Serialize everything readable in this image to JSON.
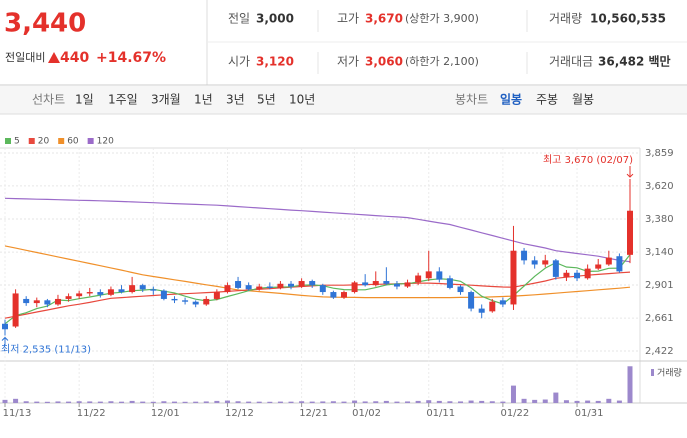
{
  "header": {
    "price": "3,440",
    "change_label": "전일대비",
    "change": "440",
    "change_rate": "+14.67%",
    "items": [
      {
        "label": "전일",
        "value": "3,000"
      },
      {
        "label": "고가",
        "value": "3,670",
        "note": "(상한가 3,900)"
      },
      {
        "label": "거래량",
        "value": "10,560,535"
      },
      {
        "label": "시가",
        "value": "3,120"
      },
      {
        "label": "저가",
        "value": "3,060",
        "note": "(하한가 2,100)"
      },
      {
        "label": "거래대금",
        "value": "36,482 백만"
      }
    ]
  },
  "nav": {
    "line_chart": "선차트",
    "periods": [
      "1일",
      "1주일",
      "3개월",
      "1년",
      "3년",
      "5년",
      "10년"
    ],
    "candle_chart": "봉차트",
    "candle_periods": [
      "일봉",
      "주봉",
      "월봉"
    ],
    "active": "일봉"
  },
  "chart_data": {
    "type": "candlestick",
    "categories": [
      "11/13",
      null,
      null,
      null,
      null,
      null,
      null,
      "11/22",
      null,
      null,
      null,
      null,
      null,
      null,
      "12/01",
      null,
      null,
      null,
      null,
      null,
      null,
      "12/12",
      null,
      null,
      null,
      null,
      null,
      null,
      "12/21",
      null,
      null,
      null,
      null,
      "01/02",
      null,
      null,
      null,
      null,
      null,
      null,
      "01/11",
      null,
      null,
      null,
      null,
      null,
      null,
      "01/22",
      null,
      null,
      null,
      null,
      null,
      null,
      "01/31",
      null,
      null,
      null,
      null,
      null
    ],
    "open": [
      2620,
      2600,
      2800,
      2770,
      2790,
      2760,
      2800,
      2820,
      2840,
      2850,
      2830,
      2870,
      2850,
      2900,
      2870,
      2860,
      2800,
      2790,
      2780,
      2760,
      2800,
      2850,
      2930,
      2900,
      2870,
      2890,
      2880,
      2910,
      2890,
      2930,
      2900,
      2850,
      2810,
      2850,
      2920,
      2900,
      2930,
      2910,
      2890,
      2920,
      2950,
      3000,
      2950,
      2890,
      2850,
      2730,
      2710,
      2790,
      2760,
      3150,
      3080,
      3050,
      3080,
      2960,
      2990,
      2950,
      3020,
      3050,
      3110,
      3120
    ],
    "high": [
      2650,
      2870,
      2820,
      2810,
      2800,
      2830,
      2840,
      2860,
      2880,
      2870,
      2890,
      2900,
      2960,
      2910,
      2890,
      2870,
      2820,
      2810,
      2790,
      2820,
      2870,
      2920,
      2960,
      2920,
      2910,
      2920,
      2930,
      2930,
      2950,
      2940,
      2910,
      2860,
      2860,
      2930,
      2980,
      3000,
      3030,
      2930,
      2940,
      2990,
      3150,
      3030,
      2970,
      2900,
      2860,
      2760,
      2800,
      2810,
      3330,
      3170,
      3110,
      3120,
      3090,
      3010,
      3010,
      3050,
      3090,
      3150,
      3130,
      3670
    ],
    "low": [
      2535,
      2590,
      2750,
      2740,
      2740,
      2750,
      2780,
      2800,
      2820,
      2810,
      2820,
      2840,
      2840,
      2850,
      2830,
      2790,
      2770,
      2760,
      2740,
      2750,
      2790,
      2840,
      2870,
      2860,
      2860,
      2870,
      2870,
      2870,
      2880,
      2880,
      2830,
      2800,
      2800,
      2840,
      2890,
      2890,
      2900,
      2870,
      2880,
      2900,
      2930,
      2920,
      2870,
      2830,
      2710,
      2660,
      2700,
      2740,
      2720,
      3050,
      3020,
      3030,
      2940,
      2930,
      2930,
      2940,
      3010,
      3040,
      2990,
      3060
    ],
    "close": [
      2580,
      2840,
      2770,
      2790,
      2760,
      2800,
      2820,
      2840,
      2850,
      2830,
      2870,
      2850,
      2900,
      2870,
      2860,
      2800,
      2790,
      2780,
      2760,
      2800,
      2850,
      2900,
      2880,
      2870,
      2890,
      2880,
      2910,
      2890,
      2930,
      2900,
      2850,
      2810,
      2850,
      2920,
      2900,
      2930,
      2910,
      2890,
      2920,
      2970,
      3000,
      2940,
      2880,
      2850,
      2730,
      2700,
      2780,
      2760,
      3150,
      3080,
      3050,
      3080,
      2960,
      2990,
      2950,
      3020,
      3050,
      3100,
      3000,
      3440
    ],
    "series": [
      {
        "name": "5",
        "color": "#5cb85c",
        "values": [
          2620,
          2680,
          2700,
          2730,
          2748,
          2792,
          2788,
          2802,
          2814,
          2828,
          2842,
          2848,
          2860,
          2864,
          2870,
          2856,
          2844,
          2820,
          2798,
          2786,
          2796,
          2818,
          2838,
          2860,
          2878,
          2884,
          2886,
          2888,
          2900,
          2902,
          2896,
          2878,
          2868,
          2866,
          2866,
          2882,
          2902,
          2910,
          2910,
          2924,
          2938,
          2946,
          2942,
          2928,
          2880,
          2820,
          2788,
          2764,
          2824,
          2894,
          2964,
          3024,
          3064,
          3032,
          3026,
          3000,
          3002,
          3022,
          3024,
          3122
        ]
      },
      {
        "name": "20",
        "color": "#e8493e",
        "values": [
          2660,
          2675,
          2690,
          2705,
          2720,
          2735,
          2750,
          2762,
          2775,
          2790,
          2805,
          2810,
          2815,
          2820,
          2825,
          2830,
          2835,
          2838,
          2842,
          2846,
          2850,
          2855,
          2860,
          2865,
          2870,
          2875,
          2880,
          2885,
          2890,
          2895,
          2900,
          2900,
          2900,
          2902,
          2904,
          2906,
          2908,
          2910,
          2912,
          2914,
          2915,
          2912,
          2908,
          2904,
          2900,
          2895,
          2890,
          2887,
          2885,
          2900,
          2915,
          2930,
          2950,
          2958,
          2965,
          2972,
          2978,
          2984,
          2990,
          2995
        ]
      },
      {
        "name": "60",
        "color": "#f0902a",
        "values": [
          3185,
          3169,
          3153,
          3137,
          3121,
          3105,
          3089,
          3073,
          3057,
          3041,
          3025,
          3009,
          2992,
          2975,
          2963,
          2951,
          2939,
          2927,
          2915,
          2903,
          2891,
          2878,
          2865,
          2859,
          2853,
          2847,
          2840,
          2833,
          2826,
          2820,
          2815,
          2813,
          2812,
          2811,
          2810,
          2810,
          2810,
          2810,
          2810,
          2810,
          2810,
          2810,
          2810,
          2811,
          2812,
          2813,
          2815,
          2818,
          2821,
          2825,
          2830,
          2836,
          2842,
          2848,
          2854,
          2860,
          2866,
          2872,
          2878,
          2885
        ]
      },
      {
        "name": "120",
        "color": "#9b6bc9",
        "values": [
          3530,
          3528,
          3526,
          3524,
          3522,
          3520,
          3518,
          3516,
          3514,
          3512,
          3510,
          3507,
          3504,
          3501,
          3498,
          3495,
          3492,
          3489,
          3486,
          3483,
          3480,
          3475,
          3470,
          3465,
          3460,
          3455,
          3450,
          3445,
          3440,
          3435,
          3430,
          3425,
          3420,
          3415,
          3410,
          3405,
          3400,
          3395,
          3390,
          3378,
          3365,
          3352,
          3340,
          3320,
          3300,
          3280,
          3260,
          3240,
          3220,
          3200,
          3185,
          3170,
          3150,
          3140,
          3130,
          3120,
          3110,
          3095,
          3080,
          3070
        ]
      }
    ],
    "up_color": "#e4312b",
    "down_color": "#2f74d6",
    "ylim": [
      2357,
      3917
    ],
    "yticks": [
      {
        "value": 2422,
        "label": "2,422"
      },
      {
        "value": 2661,
        "label": "2,661"
      },
      {
        "value": 2901,
        "label": "2,901"
      },
      {
        "value": 3140,
        "label": "3,140"
      },
      {
        "value": 3380,
        "label": "3,380"
      },
      {
        "value": 3620,
        "label": "3,620"
      },
      {
        "value": 3859,
        "label": "3,859"
      }
    ],
    "grid": true,
    "annotations": {
      "high": "최고 3,670 (02/07)",
      "low": "최저 2,535 (11/13)"
    },
    "volume": {
      "name": "거래량",
      "color": "#9c88cc",
      "ylim": [
        0,
        11500000
      ],
      "values": [
        900000,
        1200000,
        500000,
        400000,
        350000,
        450000,
        400000,
        500000,
        450000,
        400000,
        500000,
        380000,
        600000,
        400000,
        350000,
        500000,
        400000,
        350000,
        380000,
        450000,
        600000,
        700000,
        500000,
        400000,
        380000,
        350000,
        400000,
        380000,
        500000,
        400000,
        450000,
        500000,
        400000,
        700000,
        450000,
        500000,
        600000,
        400000,
        450000,
        600000,
        800000,
        600000,
        500000,
        450000,
        700000,
        600000,
        500000,
        400000,
        5000000,
        1200000,
        900000,
        1000000,
        3000000,
        800000,
        600000,
        700000,
        600000,
        1200000,
        700000,
        10560535
      ]
    }
  }
}
